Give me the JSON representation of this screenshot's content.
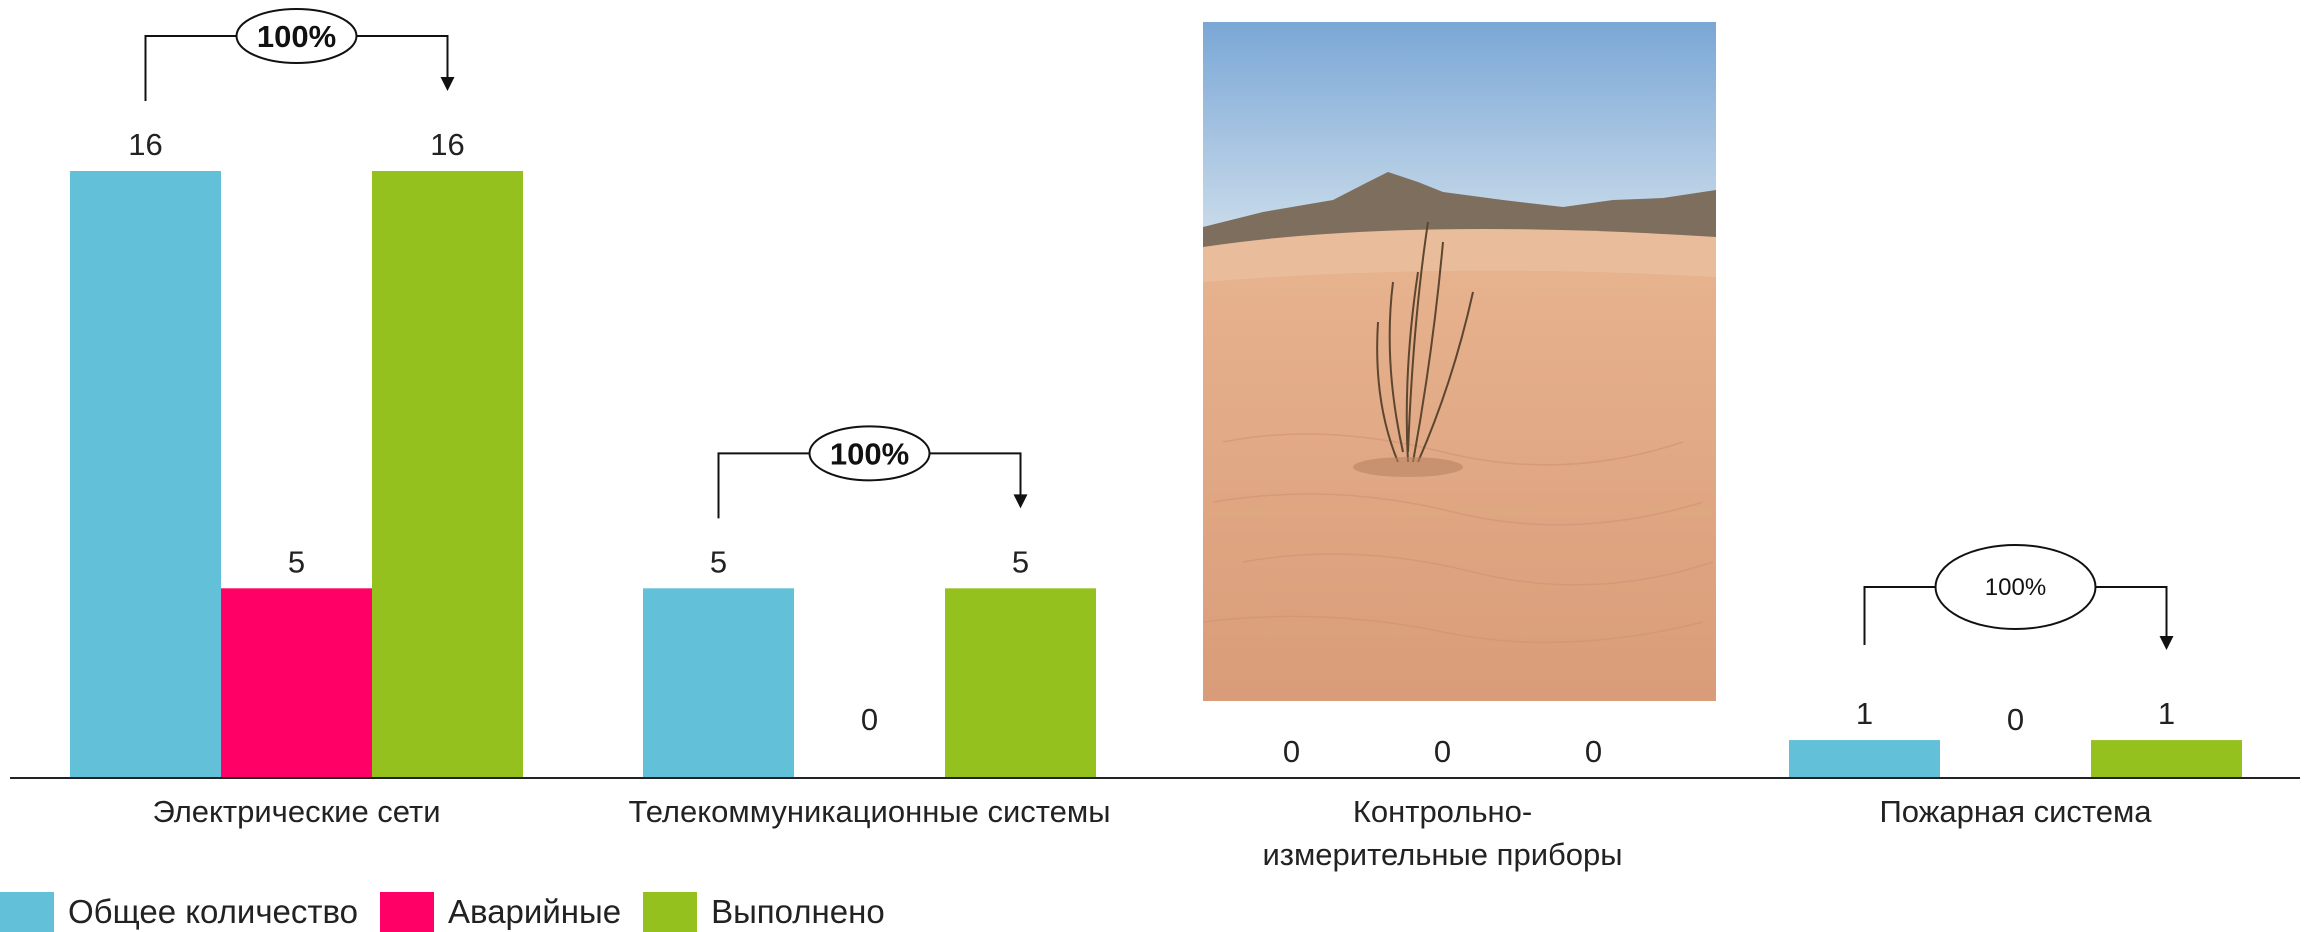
{
  "chart_data": {
    "type": "bar",
    "categories": [
      "Электрические сети",
      "Телекоммуникационные системы",
      "Контрольно-\nизмерительные приборы",
      "Пожарная система"
    ],
    "series": [
      {
        "name": "Общее количество",
        "color": "#62C0D8",
        "values": [
          16,
          5,
          0,
          1
        ]
      },
      {
        "name": "Аварийные",
        "color": "#FF0066",
        "values": [
          5,
          0,
          0,
          0
        ]
      },
      {
        "name": "Выполнено",
        "color": "#95C11F",
        "values": [
          16,
          5,
          0,
          1
        ]
      }
    ],
    "data_labels": [
      [
        "16",
        "5",
        "0",
        "1"
      ],
      [
        "5",
        "0",
        "0",
        "0"
      ],
      [
        "16",
        "5",
        "0",
        "1"
      ]
    ],
    "completion_callouts": [
      "100%",
      "100%",
      "",
      "100%"
    ],
    "ylim": [
      0,
      16
    ],
    "legend_position": "bottom-left",
    "grid": false
  },
  "legend": {
    "items": [
      {
        "label": "Общее количество",
        "color": "#62C0D8"
      },
      {
        "label": "Аварийные",
        "color": "#FF0066"
      },
      {
        "label": "Выполнено",
        "color": "#95C11F"
      }
    ]
  },
  "photo": {
    "subject": "desert-tumbleweed-photo"
  }
}
